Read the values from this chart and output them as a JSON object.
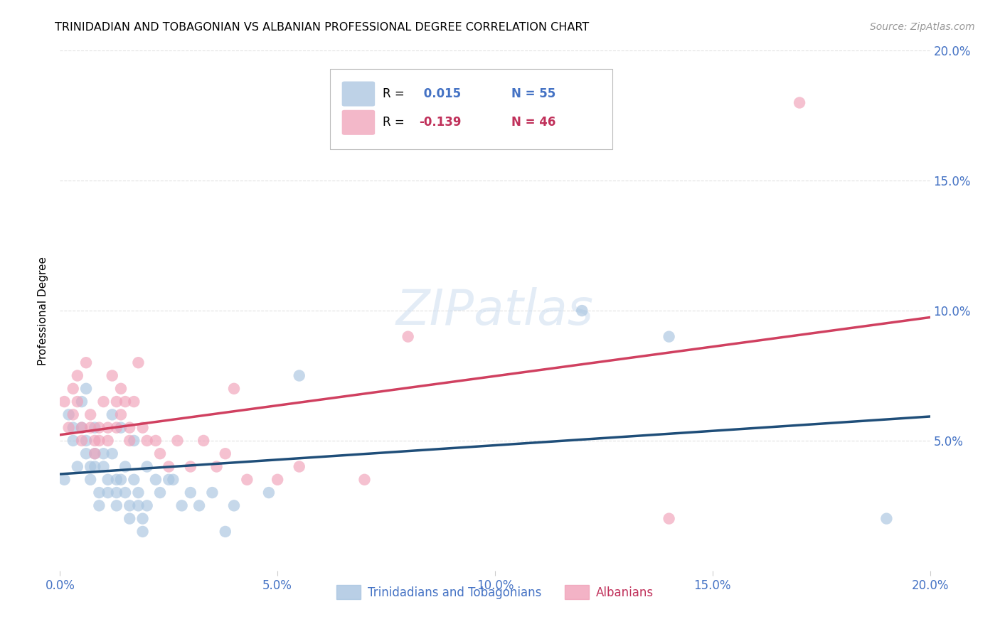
{
  "title": "TRINIDADIAN AND TOBAGONIAN VS ALBANIAN PROFESSIONAL DEGREE CORRELATION CHART",
  "source": "Source: ZipAtlas.com",
  "ylabel": "Professional Degree",
  "xlim": [
    0.0,
    0.2
  ],
  "ylim": [
    0.0,
    0.2
  ],
  "xtick_values": [
    0.0,
    0.05,
    0.1,
    0.15,
    0.2
  ],
  "ytick_values": [
    0.05,
    0.1,
    0.15,
    0.2
  ],
  "legend_label1": "Trinidadians and Tobagonians",
  "legend_label2": "Albanians",
  "color_blue": "#a8c4e0",
  "color_pink": "#f0a0b8",
  "color_blue_line": "#1f4e79",
  "color_pink_line": "#d04060",
  "color_blue_text": "#4472c4",
  "color_pink_text": "#c0305a",
  "watermark_color": "#ccddf0",
  "background_color": "#ffffff",
  "grid_color": "#e0e0e0",
  "trin_x": [
    0.001,
    0.002,
    0.003,
    0.003,
    0.004,
    0.005,
    0.005,
    0.006,
    0.006,
    0.006,
    0.007,
    0.007,
    0.008,
    0.008,
    0.008,
    0.009,
    0.009,
    0.01,
    0.01,
    0.011,
    0.011,
    0.012,
    0.012,
    0.013,
    0.013,
    0.013,
    0.014,
    0.014,
    0.015,
    0.015,
    0.016,
    0.016,
    0.017,
    0.017,
    0.018,
    0.018,
    0.019,
    0.019,
    0.02,
    0.02,
    0.022,
    0.023,
    0.025,
    0.026,
    0.028,
    0.03,
    0.032,
    0.035,
    0.038,
    0.04,
    0.048,
    0.055,
    0.12,
    0.14,
    0.19
  ],
  "trin_y": [
    0.035,
    0.06,
    0.055,
    0.05,
    0.04,
    0.065,
    0.055,
    0.07,
    0.05,
    0.045,
    0.04,
    0.035,
    0.055,
    0.045,
    0.04,
    0.03,
    0.025,
    0.045,
    0.04,
    0.035,
    0.03,
    0.06,
    0.045,
    0.035,
    0.03,
    0.025,
    0.055,
    0.035,
    0.04,
    0.03,
    0.025,
    0.02,
    0.05,
    0.035,
    0.03,
    0.025,
    0.02,
    0.015,
    0.04,
    0.025,
    0.035,
    0.03,
    0.035,
    0.035,
    0.025,
    0.03,
    0.025,
    0.03,
    0.015,
    0.025,
    0.03,
    0.075,
    0.1,
    0.09,
    0.02
  ],
  "alb_x": [
    0.001,
    0.002,
    0.003,
    0.003,
    0.004,
    0.004,
    0.005,
    0.005,
    0.006,
    0.007,
    0.007,
    0.008,
    0.008,
    0.009,
    0.009,
    0.01,
    0.011,
    0.011,
    0.012,
    0.013,
    0.013,
    0.014,
    0.014,
    0.015,
    0.016,
    0.016,
    0.017,
    0.018,
    0.019,
    0.02,
    0.022,
    0.023,
    0.025,
    0.027,
    0.03,
    0.033,
    0.036,
    0.038,
    0.04,
    0.043,
    0.05,
    0.055,
    0.07,
    0.08,
    0.14,
    0.17
  ],
  "alb_y": [
    0.065,
    0.055,
    0.07,
    0.06,
    0.075,
    0.065,
    0.055,
    0.05,
    0.08,
    0.06,
    0.055,
    0.05,
    0.045,
    0.055,
    0.05,
    0.065,
    0.055,
    0.05,
    0.075,
    0.065,
    0.055,
    0.07,
    0.06,
    0.065,
    0.055,
    0.05,
    0.065,
    0.08,
    0.055,
    0.05,
    0.05,
    0.045,
    0.04,
    0.05,
    0.04,
    0.05,
    0.04,
    0.045,
    0.07,
    0.035,
    0.035,
    0.04,
    0.035,
    0.09,
    0.02,
    0.18
  ]
}
